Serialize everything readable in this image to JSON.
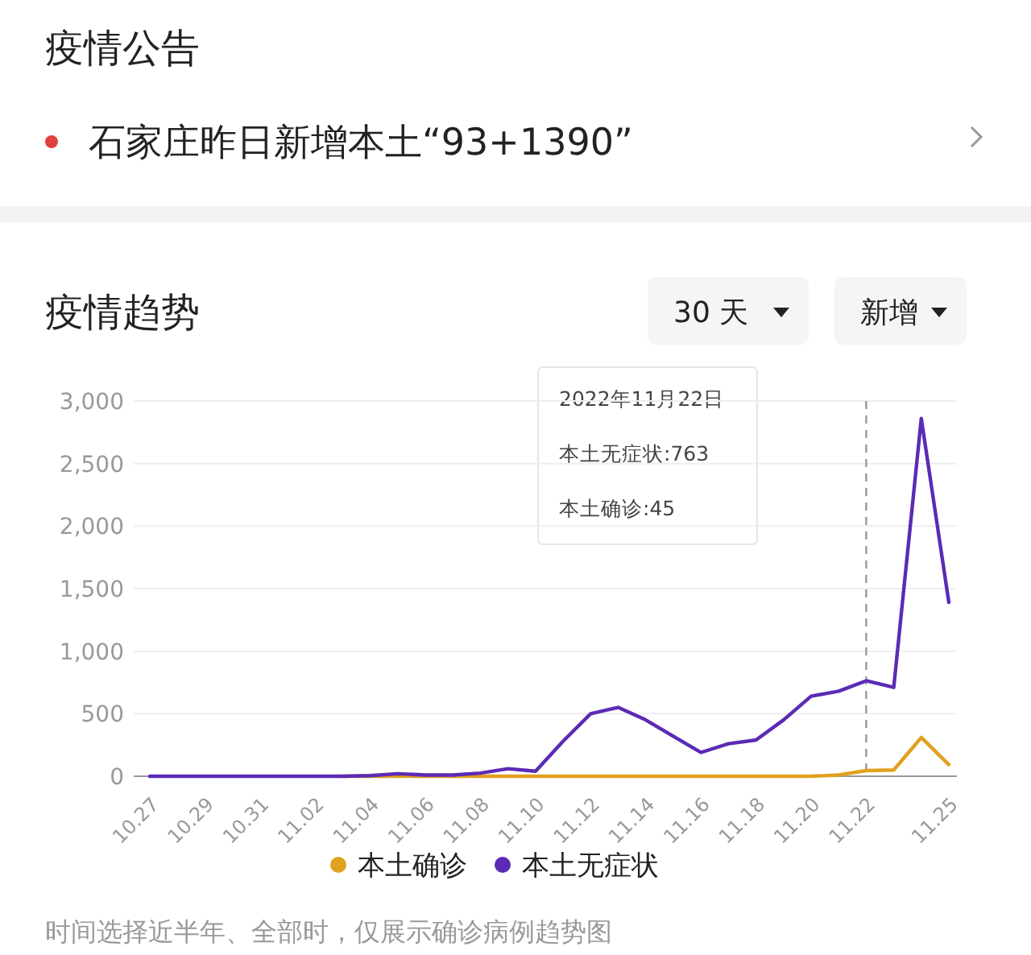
{
  "chart_data": {
    "type": "line",
    "title": "疫情趋势",
    "categories": [
      "10.27",
      null,
      "10.29",
      null,
      "10.31",
      null,
      "11.02",
      null,
      "11.04",
      null,
      "11.06",
      null,
      "11.08",
      null,
      "11.10",
      null,
      "11.12",
      null,
      "11.14",
      null,
      "11.16",
      null,
      "11.18",
      null,
      "11.20",
      null,
      "11.22",
      null,
      null,
      "11.25"
    ],
    "series": [
      {
        "name": "本土确诊",
        "color": "#e0a020",
        "values": [
          null,
          null,
          null,
          null,
          null,
          null,
          null,
          0,
          0,
          0,
          0,
          0,
          0,
          0,
          0,
          0,
          0,
          0,
          0,
          0,
          0,
          0,
          0,
          0,
          0,
          10,
          45,
          50,
          310,
          93
        ]
      },
      {
        "name": "本土无症状",
        "color": "#5b2bb5",
        "values": [
          0,
          0,
          0,
          0,
          0,
          0,
          0,
          0,
          5,
          20,
          10,
          10,
          25,
          60,
          40,
          280,
          500,
          550,
          450,
          320,
          190,
          260,
          290,
          450,
          640,
          680,
          763,
          710,
          2860,
          1390
        ]
      }
    ],
    "ylim": [
      0,
      3000
    ],
    "yticks": [
      0,
      500,
      {
        "value": 1000,
        "label": "1,000"
      },
      {
        "value": 1500,
        "label": "1,500"
      },
      {
        "value": 2000,
        "label": "2,000"
      },
      {
        "value": 2500,
        "label": "2,500"
      },
      {
        "value": 3000,
        "label": "3,000"
      }
    ],
    "grid": "y",
    "legend": "bottom",
    "marker": "none",
    "line_style": "solid",
    "ref_lines": [
      {
        "axis": "x",
        "value": "11.22",
        "color": "#999999",
        "line_style": "dashed"
      }
    ],
    "annotations": [
      "疫情公告",
      "石家庄昨日新增本土“93+1390”",
      "30 天",
      "新增",
      "2022年11月22日",
      "本土无症状:763",
      "本土确诊:45",
      "时间选择近半年、全部时，仅展示确诊病例趋势图"
    ]
  }
}
